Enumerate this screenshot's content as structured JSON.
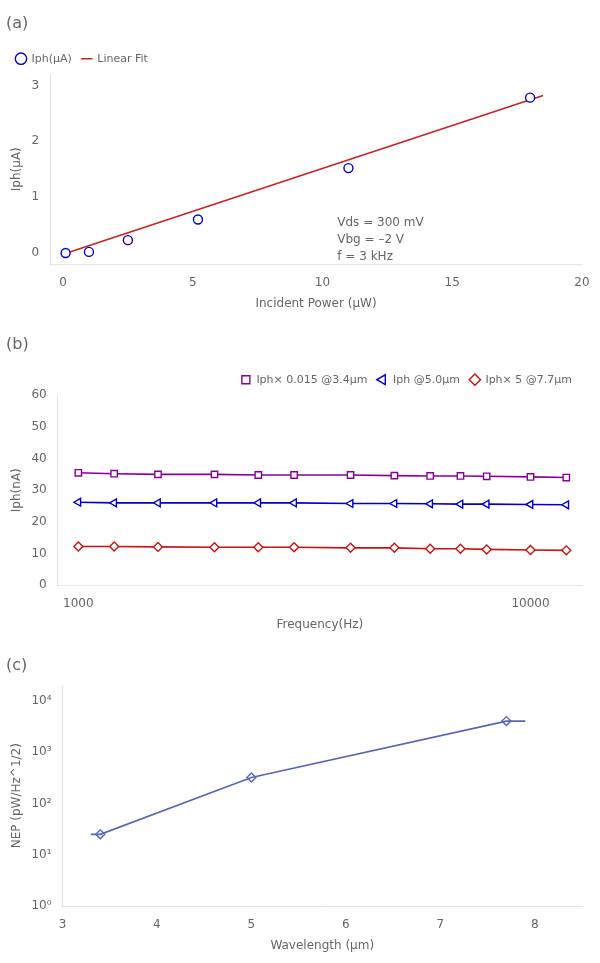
{
  "chart_data": [
    {
      "type": "scatter",
      "title": "(a)",
      "xlabel": "Incident Power (μW)",
      "ylabel": "Iph(μA)",
      "annotations": [
        "Vds = 300 mV",
        "Vbg = –2 V",
        "f = 3 kHz"
      ],
      "series": [
        {
          "name": "Iph(μA)",
          "type": "scatter",
          "color": "#0000cc",
          "marker": "circle",
          "x": [
            0.1,
            1.0,
            2.5,
            5.2,
            11.0,
            18.0
          ],
          "values": [
            0.0,
            0.02,
            0.23,
            0.6,
            1.52,
            2.78
          ]
        },
        {
          "name": "Linear Fit",
          "type": "line",
          "color": "#cc2222",
          "x": [
            0.0,
            18.5
          ],
          "values": [
            -0.02,
            2.82
          ]
        }
      ],
      "xlim": [
        -0.5,
        20
      ],
      "ylim": [
        -0.2,
        3.2
      ],
      "xticks": [
        0,
        5,
        10,
        15,
        20
      ],
      "yticks": [
        0,
        1,
        2,
        3
      ],
      "legend": "upper left",
      "grid": false
    },
    {
      "type": "line",
      "title": "(b)",
      "xlabel": "Frequency(Hz)",
      "ylabel": "Iph(nA)",
      "log": "x",
      "x": [
        1000,
        1200,
        1500,
        2000,
        2500,
        3000,
        4000,
        5000,
        6000,
        7000,
        8000,
        10000,
        12000
      ],
      "series": [
        {
          "name": "Iph× 0.015 @3.4μm",
          "color": "#880099",
          "marker": "square",
          "values": [
            35.5,
            35.2,
            35.0,
            35.0,
            34.8,
            34.8,
            34.8,
            34.6,
            34.5,
            34.5,
            34.4,
            34.2,
            34.0
          ]
        },
        {
          "name": "Iph @5.0μm",
          "color": "#0000cc",
          "marker": "triangle_left",
          "values": [
            26.2,
            26.0,
            26.0,
            26.0,
            26.0,
            26.0,
            25.8,
            25.8,
            25.7,
            25.6,
            25.6,
            25.5,
            25.4
          ]
        },
        {
          "name": "Iph× 5 @7.7μm",
          "color": "#cc1111",
          "marker": "diamond",
          "values": [
            12.2,
            12.2,
            12.1,
            12.0,
            12.0,
            12.0,
            11.8,
            11.8,
            11.5,
            11.5,
            11.3,
            11.1,
            11.0
          ]
        }
      ],
      "xlim": [
        900,
        13000
      ],
      "ylim": [
        0,
        60
      ],
      "xticks": [
        1000,
        10000
      ],
      "yticks": [
        0,
        10,
        20,
        30,
        40,
        50,
        60
      ],
      "legend": "upper right",
      "grid": false
    },
    {
      "type": "scatter",
      "title": "(c)",
      "xlabel": "Wavelength (μm)",
      "ylabel": "NEP (pW/Hz^1/2)",
      "log": "y",
      "series": [
        {
          "type": "line",
          "color": "#5566bb",
          "x": [
            3.3,
            3.4,
            5.0,
            7.7,
            7.9
          ],
          "values": [
            25,
            25,
            320,
            4000,
            4000
          ]
        },
        {
          "type": "scatter",
          "color": "#5566bb",
          "marker": "diamond",
          "x": [
            3.4,
            5.0,
            7.7
          ],
          "values": [
            25,
            320,
            4000
          ]
        }
      ],
      "xlim": [
        3.0,
        8.5
      ],
      "ylim": [
        1,
        20000
      ],
      "xticks": [
        3,
        4,
        5,
        6,
        7,
        8
      ],
      "yticks": [
        {
          "value": 1,
          "label": "10⁰"
        },
        {
          "value": 10,
          "label": "10¹"
        },
        {
          "value": 100,
          "label": "10²"
        },
        {
          "value": 1000,
          "label": "10³"
        },
        {
          "value": 10000,
          "label": "10⁴"
        }
      ],
      "legend": false,
      "grid": false
    }
  ]
}
